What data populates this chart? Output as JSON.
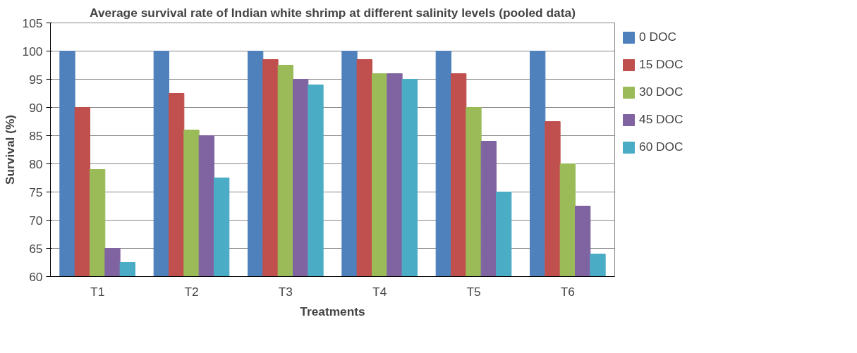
{
  "chart_data": {
    "type": "bar",
    "title": "Average survival rate of Indian white shrimp at different salinity levels (pooled data)",
    "xlabel": "Treatments",
    "ylabel": "Survival (%)",
    "categories": [
      "T1",
      "T2",
      "T3",
      "T4",
      "T5",
      "T6"
    ],
    "series": [
      {
        "name": "0 DOC",
        "color": "#4f81bd",
        "values": [
          100,
          100,
          100,
          100,
          100,
          100
        ]
      },
      {
        "name": "15 DOC",
        "color": "#c0504d",
        "values": [
          90,
          92.5,
          98.5,
          98.5,
          96,
          87.5
        ]
      },
      {
        "name": "30 DOC",
        "color": "#9bbb59",
        "values": [
          79,
          86,
          97.5,
          96,
          90,
          80
        ]
      },
      {
        "name": "45 DOC",
        "color": "#8064a2",
        "values": [
          65,
          85,
          95,
          96,
          84,
          72.5
        ]
      },
      {
        "name": "60 DOC",
        "color": "#4bacc6",
        "values": [
          62.5,
          77.5,
          94,
          95,
          75,
          64
        ]
      }
    ],
    "ylim": [
      60,
      105
    ],
    "yticks": [
      60,
      65,
      70,
      75,
      80,
      85,
      90,
      95,
      100,
      105
    ],
    "grid": "y",
    "legend": "right"
  }
}
